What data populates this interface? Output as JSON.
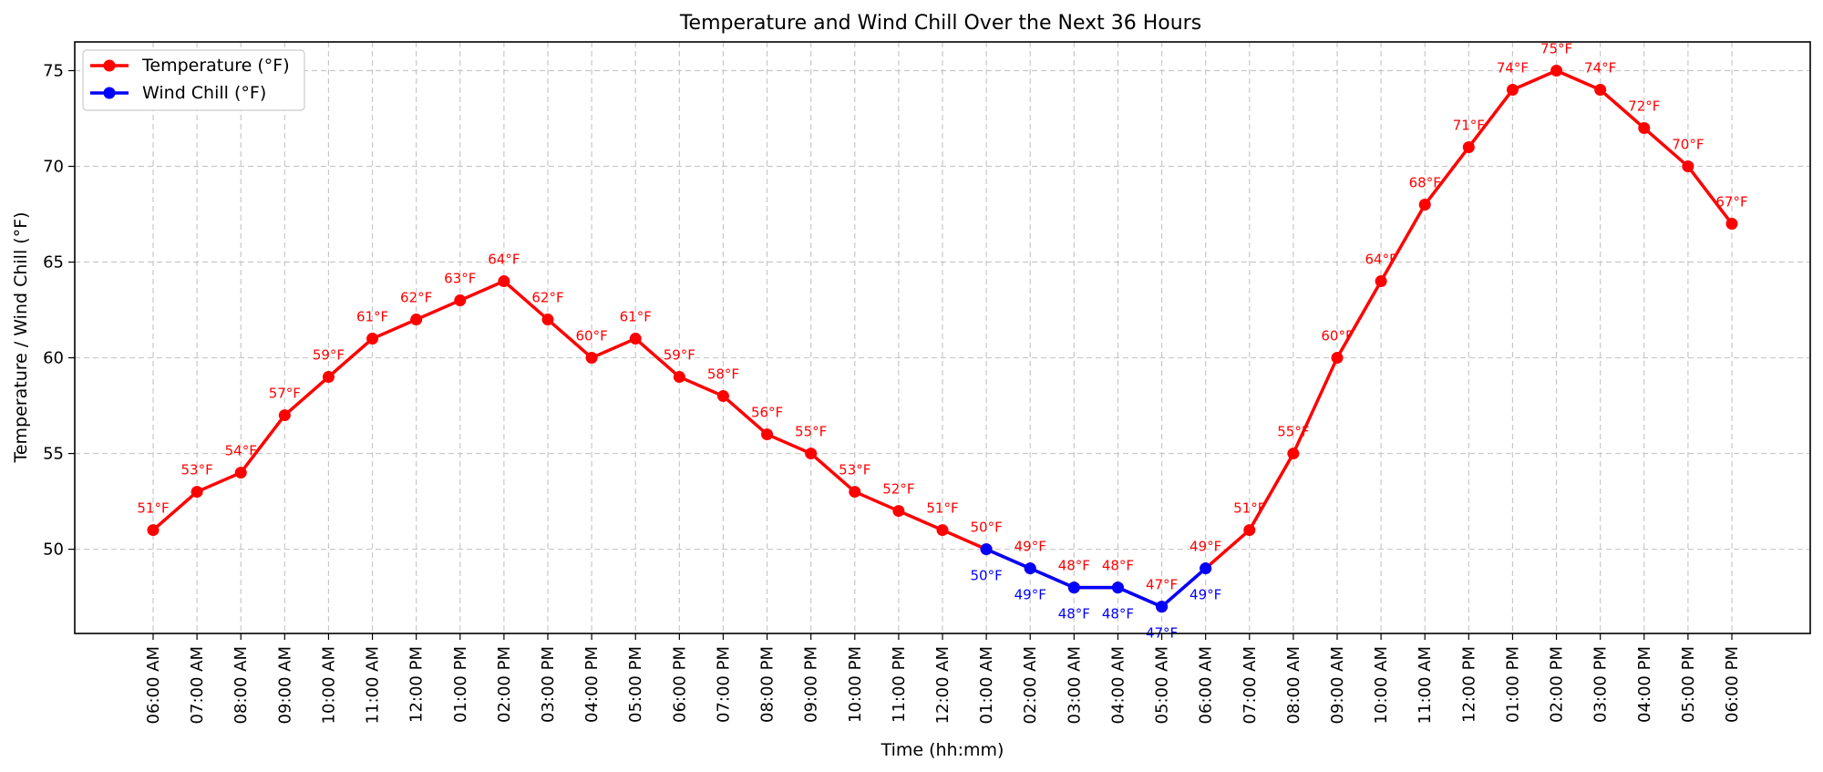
{
  "chart_data": {
    "type": "line",
    "title": "Temperature and Wind Chill Over the Next 36 Hours",
    "xlabel": "Time (hh:mm)",
    "ylabel": "Temperature / Wind Chill (°F)",
    "ylim": [
      45.6,
      76.5
    ],
    "yticks": [
      50,
      55,
      60,
      65,
      70,
      75
    ],
    "grid": true,
    "legend_position": "top-left",
    "categories": [
      "06:00 AM",
      "07:00 AM",
      "08:00 AM",
      "09:00 AM",
      "10:00 AM",
      "11:00 AM",
      "12:00 PM",
      "01:00 PM",
      "02:00 PM",
      "03:00 PM",
      "04:00 PM",
      "05:00 PM",
      "06:00 PM",
      "07:00 PM",
      "08:00 PM",
      "09:00 PM",
      "10:00 PM",
      "11:00 PM",
      "12:00 AM",
      "01:00 AM",
      "02:00 AM",
      "03:00 AM",
      "04:00 AM",
      "05:00 AM",
      "06:00 AM",
      "07:00 AM",
      "08:00 AM",
      "09:00 AM",
      "10:00 AM",
      "11:00 AM",
      "12:00 PM",
      "01:00 PM",
      "02:00 PM",
      "03:00 PM",
      "04:00 PM",
      "05:00 PM",
      "06:00 PM"
    ],
    "series": [
      {
        "name": "Temperature (°F)",
        "color": "#ff0000",
        "label_position": "above",
        "values": [
          51,
          53,
          54,
          57,
          59,
          61,
          62,
          63,
          64,
          62,
          60,
          61,
          59,
          58,
          56,
          55,
          53,
          52,
          51,
          50,
          49,
          48,
          48,
          47,
          49,
          51,
          55,
          60,
          64,
          68,
          71,
          74,
          75,
          74,
          72,
          70,
          67
        ],
        "labels": [
          "51°F",
          "53°F",
          "54°F",
          "57°F",
          "59°F",
          "61°F",
          "62°F",
          "63°F",
          "64°F",
          "62°F",
          "60°F",
          "61°F",
          "59°F",
          "58°F",
          "56°F",
          "55°F",
          "53°F",
          "52°F",
          "51°F",
          "50°F",
          "49°F",
          "48°F",
          "48°F",
          "47°F",
          "49°F",
          "51°F",
          "55°F",
          "60°F",
          "64°F",
          "68°F",
          "71°F",
          "74°F",
          "75°F",
          "74°F",
          "72°F",
          "70°F",
          "67°F"
        ]
      },
      {
        "name": "Wind Chill (°F)",
        "color": "#0000ff",
        "label_position": "below",
        "values": [
          null,
          null,
          null,
          null,
          null,
          null,
          null,
          null,
          null,
          null,
          null,
          null,
          null,
          null,
          null,
          null,
          null,
          null,
          null,
          50,
          49,
          48,
          48,
          47,
          49,
          null,
          null,
          null,
          null,
          null,
          null,
          null,
          null,
          null,
          null,
          null,
          null
        ],
        "labels": [
          null,
          null,
          null,
          null,
          null,
          null,
          null,
          null,
          null,
          null,
          null,
          null,
          null,
          null,
          null,
          null,
          null,
          null,
          null,
          "50°F",
          "49°F",
          "48°F",
          "48°F",
          "47°F",
          "49°F",
          null,
          null,
          null,
          null,
          null,
          null,
          null,
          null,
          null,
          null,
          null,
          null
        ]
      }
    ]
  }
}
